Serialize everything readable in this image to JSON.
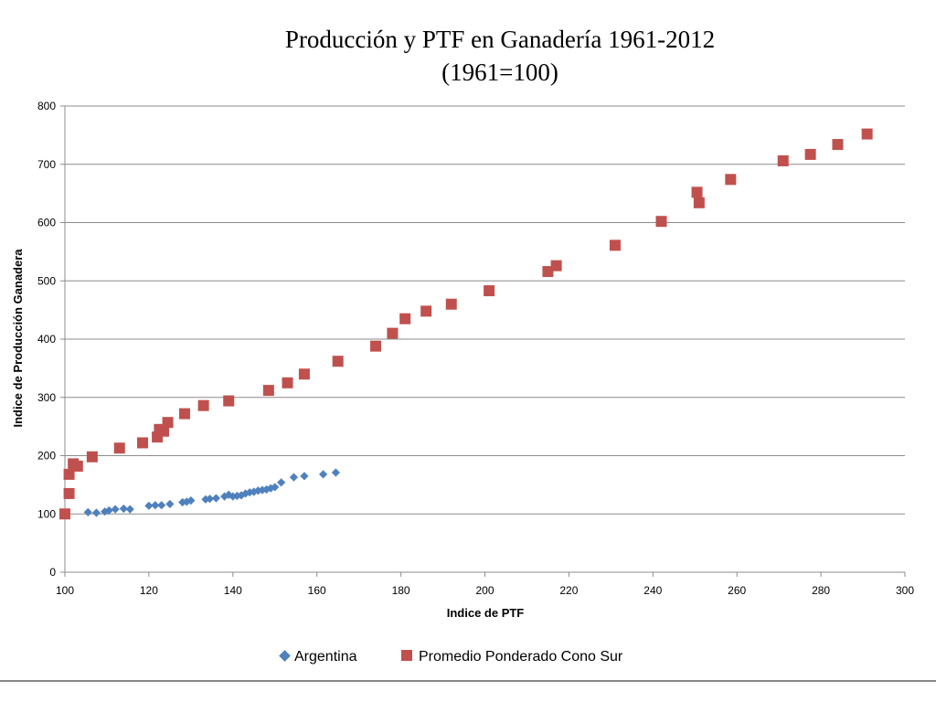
{
  "chart_data": {
    "type": "scatter",
    "title": "Producción y PTF en Ganadería 1961-2012",
    "subtitle": "(1961=100)",
    "xlabel": "Indice de PTF",
    "ylabel": "Indice de Producción Ganadera",
    "xlim": [
      100,
      300
    ],
    "ylim": [
      0,
      800
    ],
    "x_ticks": [
      100,
      120,
      140,
      160,
      180,
      200,
      220,
      240,
      260,
      280,
      300
    ],
    "y_ticks": [
      0,
      100,
      200,
      300,
      400,
      500,
      600,
      700,
      800
    ],
    "grid": "horizontal",
    "legend_position": "bottom",
    "series": [
      {
        "name": "Argentina",
        "marker": "diamond",
        "color": "#4f81bd",
        "points": [
          [
            100,
            100
          ],
          [
            105.5,
            103
          ],
          [
            107.5,
            102
          ],
          [
            109.5,
            104
          ],
          [
            110.5,
            106
          ],
          [
            112,
            108
          ],
          [
            114,
            109
          ],
          [
            115.5,
            108
          ],
          [
            120,
            114
          ],
          [
            121.5,
            115
          ],
          [
            123,
            115
          ],
          [
            125,
            117
          ],
          [
            128,
            120
          ],
          [
            129,
            121
          ],
          [
            130,
            123
          ],
          [
            133.5,
            125
          ],
          [
            134.5,
            126
          ],
          [
            136,
            127
          ],
          [
            138,
            130
          ],
          [
            139,
            133
          ],
          [
            140,
            130
          ],
          [
            141,
            131
          ],
          [
            142,
            132
          ],
          [
            143,
            135
          ],
          [
            144,
            137
          ],
          [
            145,
            138
          ],
          [
            146,
            140
          ],
          [
            147,
            141
          ],
          [
            148,
            142
          ],
          [
            149,
            144
          ],
          [
            150,
            146
          ],
          [
            151.5,
            154
          ],
          [
            154.5,
            163
          ],
          [
            157,
            165
          ],
          [
            161.5,
            168
          ],
          [
            164.5,
            171
          ]
        ]
      },
      {
        "name": "Promedio Ponderado Cono Sur",
        "marker": "square",
        "color": "#c0504d",
        "points": [
          [
            100,
            100
          ],
          [
            101,
            135
          ],
          [
            101,
            168
          ],
          [
            102,
            186
          ],
          [
            103,
            182
          ],
          [
            106.5,
            198
          ],
          [
            113,
            213
          ],
          [
            118.5,
            222
          ],
          [
            122,
            232
          ],
          [
            122.5,
            245
          ],
          [
            123.5,
            242
          ],
          [
            124.5,
            257
          ],
          [
            128.5,
            272
          ],
          [
            133,
            286
          ],
          [
            139,
            294
          ],
          [
            148.5,
            312
          ],
          [
            153,
            325
          ],
          [
            157,
            340
          ],
          [
            165,
            362
          ],
          [
            174,
            388
          ],
          [
            178,
            410
          ],
          [
            181,
            435
          ],
          [
            186,
            448
          ],
          [
            192,
            460
          ],
          [
            201,
            483
          ],
          [
            215,
            516
          ],
          [
            217,
            526
          ],
          [
            231,
            561
          ],
          [
            242,
            602
          ],
          [
            250.5,
            652
          ],
          [
            251,
            634
          ],
          [
            258.5,
            674
          ],
          [
            271,
            706
          ],
          [
            277.5,
            717
          ],
          [
            284,
            734
          ],
          [
            291,
            752
          ]
        ]
      }
    ]
  }
}
